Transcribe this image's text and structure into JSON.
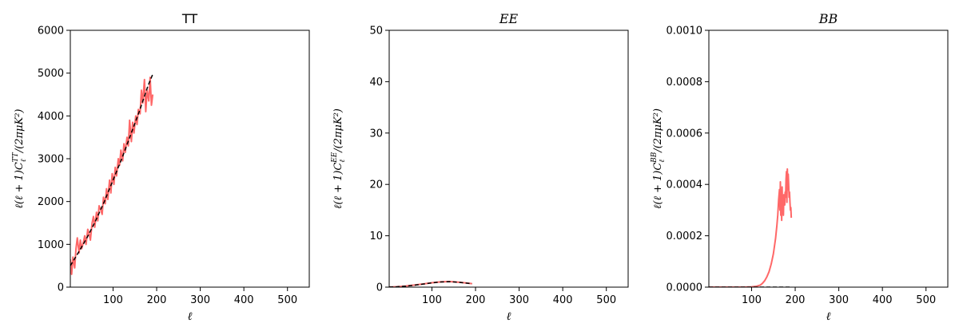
{
  "chart_data": [
    {
      "type": "line",
      "title": "TT",
      "title_italic": false,
      "xlabel": "ℓ",
      "ylabel": "ℓ(ℓ + 1)C_ℓ^{TT}/(2πμK²)",
      "ylabel_parts": [
        "ℓ(ℓ + 1)C",
        "ℓ",
        "TT",
        "/(2πμK²)"
      ],
      "xlim": [
        2,
        550
      ],
      "ylim": [
        0,
        6000
      ],
      "xticks": [
        100,
        200,
        300,
        400,
        500
      ],
      "yticks": [
        0,
        1000,
        2000,
        3000,
        4000,
        5000,
        6000
      ],
      "ytick_labels": [
        "0",
        "1000",
        "2000",
        "3000",
        "4000",
        "5000",
        "6000"
      ],
      "series": [
        {
          "style": "solid",
          "color": "#ff4d4d",
          "x": [
            2,
            5,
            8,
            12,
            15,
            18,
            22,
            25,
            28,
            32,
            35,
            38,
            42,
            45,
            48,
            52,
            55,
            58,
            62,
            65,
            68,
            72,
            75,
            78,
            82,
            85,
            88,
            92,
            95,
            98,
            102,
            105,
            108,
            112,
            115,
            118,
            122,
            125,
            128,
            132,
            135,
            138,
            142,
            145,
            148,
            152,
            155,
            158,
            162,
            165,
            168,
            172,
            175,
            178,
            182,
            185,
            188,
            191
          ],
          "y": [
            650,
            300,
            700,
            450,
            900,
            1150,
            800,
            1100,
            900,
            1050,
            1200,
            1000,
            1350,
            1250,
            1100,
            1500,
            1650,
            1400,
            1750,
            1550,
            1900,
            1800,
            1700,
            2100,
            1950,
            2300,
            2050,
            2500,
            2200,
            2650,
            2400,
            2800,
            2600,
            3000,
            2850,
            3200,
            2950,
            3350,
            3150,
            3500,
            3300,
            3900,
            3400,
            3850,
            3600,
            4000,
            3800,
            4150,
            4050,
            4600,
            4300,
            4850,
            4100,
            4600,
            4350,
            4900,
            4250,
            4500
          ]
        },
        {
          "style": "dashed",
          "color": "#000000",
          "x": [
            2,
            20,
            40,
            60,
            80,
            100,
            120,
            140,
            160,
            180,
            192
          ],
          "y": [
            500,
            800,
            1150,
            1550,
            2000,
            2500,
            3000,
            3550,
            4100,
            4700,
            5000
          ]
        }
      ]
    },
    {
      "type": "line",
      "title": "EE",
      "title_italic": true,
      "xlabel": "ℓ",
      "ylabel": "ℓ(ℓ + 1)C_ℓ^{EE}/(2πμK²)",
      "ylabel_parts": [
        "ℓ(ℓ + 1)C",
        "ℓ",
        "EE",
        "/(2πμK²)"
      ],
      "xlim": [
        2,
        550
      ],
      "ylim": [
        0,
        50
      ],
      "xticks": [
        100,
        200,
        300,
        400,
        500
      ],
      "yticks": [
        0,
        10,
        20,
        30,
        40,
        50
      ],
      "ytick_labels": [
        "0",
        "10",
        "20",
        "30",
        "40",
        "50"
      ],
      "series": [
        {
          "style": "solid",
          "color": "#ff4d4d",
          "x": [
            2,
            20,
            40,
            60,
            80,
            100,
            120,
            140,
            160,
            180,
            192
          ],
          "y": [
            0.02,
            0.08,
            0.22,
            0.4,
            0.62,
            0.85,
            1.02,
            1.08,
            0.98,
            0.8,
            0.68
          ]
        },
        {
          "style": "dashed",
          "color": "#000000",
          "x": [
            2,
            20,
            40,
            60,
            80,
            100,
            120,
            140,
            160,
            180,
            192
          ],
          "y": [
            0.02,
            0.07,
            0.2,
            0.38,
            0.6,
            0.83,
            1.0,
            1.06,
            0.96,
            0.78,
            0.66
          ]
        }
      ]
    },
    {
      "type": "line",
      "title": "BB",
      "title_italic": true,
      "xlabel": "ℓ",
      "ylabel": "ℓ(ℓ + 1)C_ℓ^{BB}/(2πμK²)",
      "ylabel_parts": [
        "ℓ(ℓ + 1)C",
        "ℓ",
        "BB",
        "/(2πμK²)"
      ],
      "xlim": [
        2,
        550
      ],
      "ylim": [
        0,
        0.001
      ],
      "xticks": [
        100,
        200,
        300,
        400,
        500
      ],
      "yticks": [
        0,
        0.0002,
        0.0004,
        0.0006,
        0.0008,
        0.001
      ],
      "ytick_labels": [
        "0.0000",
        "0.0002",
        "0.0004",
        "0.0006",
        "0.0008",
        "0.0010"
      ],
      "series": [
        {
          "style": "solid",
          "color": "#ff4d4d",
          "x": [
            2,
            40,
            80,
            100,
            110,
            120,
            125,
            130,
            135,
            140,
            145,
            150,
            155,
            158,
            160,
            162,
            164,
            165,
            166,
            167,
            168,
            169,
            170,
            171,
            172,
            173,
            174,
            175,
            176,
            177,
            178,
            179,
            180,
            181,
            182,
            183,
            184,
            185,
            186,
            187,
            188,
            189,
            190,
            191
          ],
          "y": [
            0,
            0,
            0,
            1e-06,
            3e-06,
            8e-06,
            1.5e-05,
            2.5e-05,
            4e-05,
            6e-05,
            9e-05,
            0.00013,
            0.00019,
            0.00024,
            0.00028,
            0.00034,
            0.00038,
            0.0003,
            0.00041,
            0.00028,
            0.00037,
            0.00026,
            0.00039,
            0.00031,
            0.00033,
            0.00028,
            0.00036,
            0.00034,
            0.00032,
            0.00037,
            0.00035,
            0.00042,
            0.00045,
            0.00033,
            0.00046,
            0.00038,
            0.00044,
            0.0004,
            0.00035,
            0.00037,
            0.00033,
            0.0003,
            0.00031,
            0.00027
          ]
        },
        {
          "style": "dashed",
          "color": "#000000",
          "x": [
            2,
            192
          ],
          "y": [
            0,
            0
          ]
        }
      ]
    }
  ]
}
